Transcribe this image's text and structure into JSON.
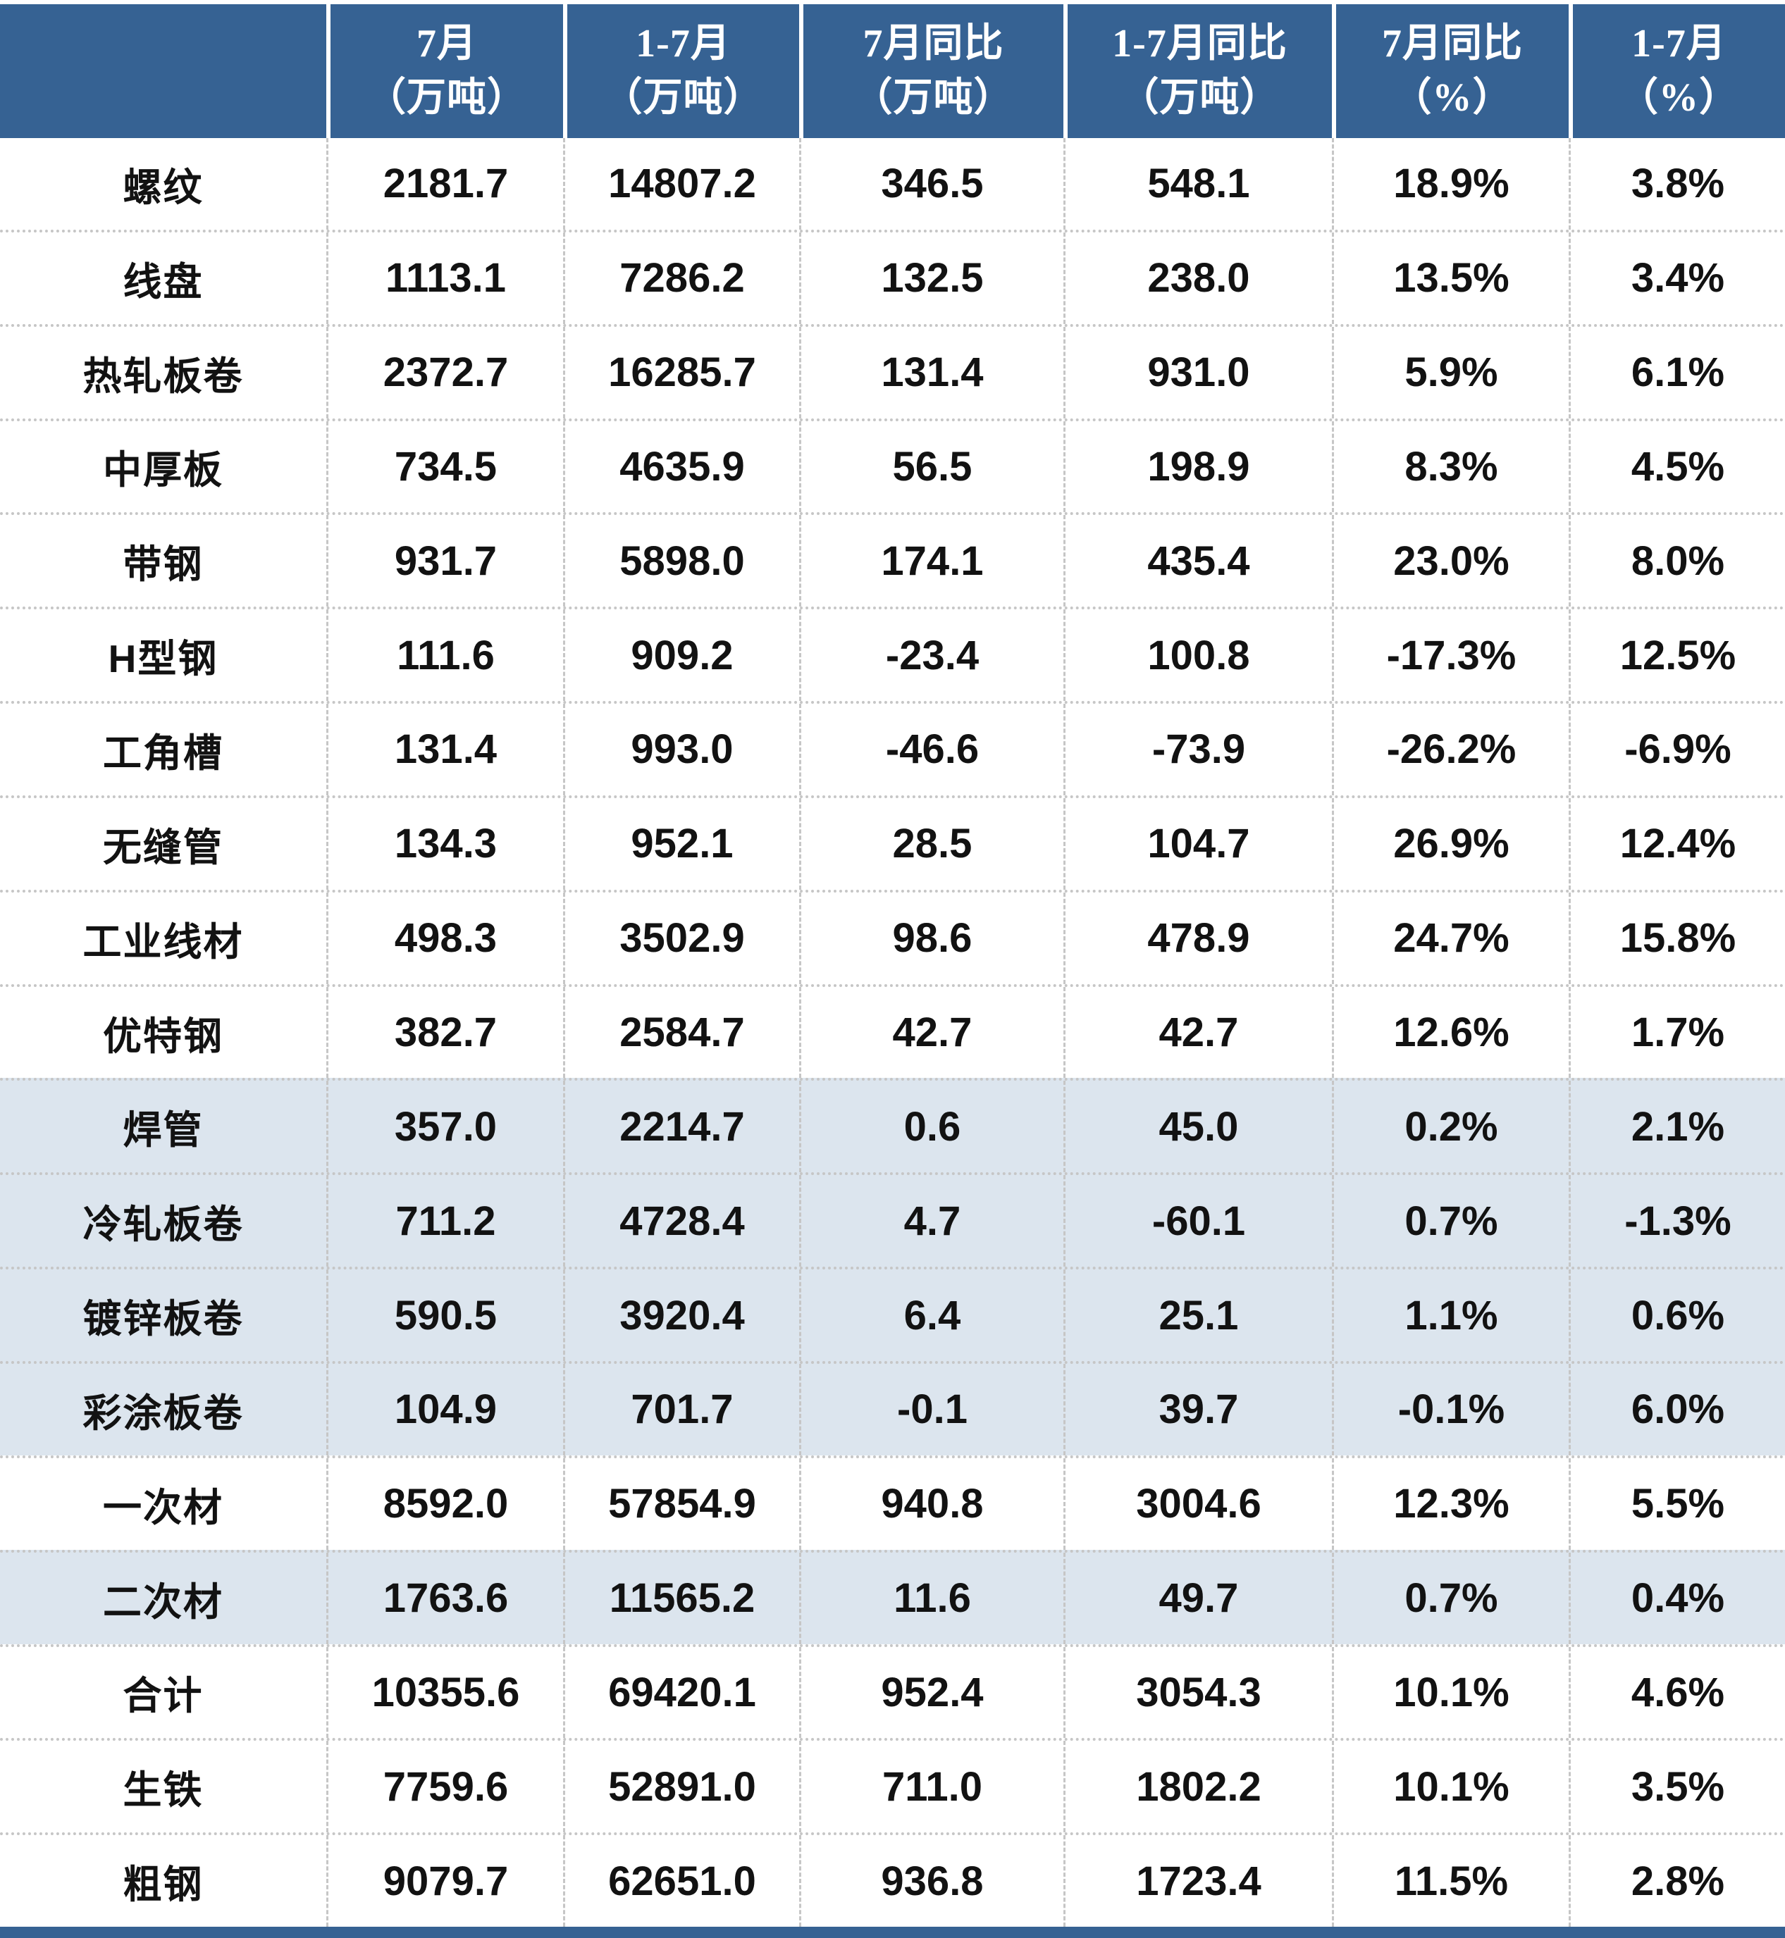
{
  "chart_data": {
    "type": "table",
    "title": "",
    "header": [
      [
        "",
        ""
      ],
      [
        "7月",
        "（万吨）"
      ],
      [
        "1-7月",
        "（万吨）"
      ],
      [
        "7月同比",
        "（万吨）"
      ],
      [
        "1-7月同比",
        "（万吨）"
      ],
      [
        "7月同比",
        "（%）"
      ],
      [
        "1-7月",
        "（%）"
      ]
    ],
    "rows": [
      {
        "label": "螺纹",
        "values": [
          "2181.7",
          "14807.2",
          "346.5",
          "548.1",
          "18.9%",
          "3.8%"
        ],
        "shaded": false
      },
      {
        "label": "线盘",
        "values": [
          "1113.1",
          "7286.2",
          "132.5",
          "238.0",
          "13.5%",
          "3.4%"
        ],
        "shaded": false
      },
      {
        "label": "热轧板卷",
        "values": [
          "2372.7",
          "16285.7",
          "131.4",
          "931.0",
          "5.9%",
          "6.1%"
        ],
        "shaded": false
      },
      {
        "label": "中厚板",
        "values": [
          "734.5",
          "4635.9",
          "56.5",
          "198.9",
          "8.3%",
          "4.5%"
        ],
        "shaded": false
      },
      {
        "label": "带钢",
        "values": [
          "931.7",
          "5898.0",
          "174.1",
          "435.4",
          "23.0%",
          "8.0%"
        ],
        "shaded": false
      },
      {
        "label": "H型钢",
        "values": [
          "111.6",
          "909.2",
          "-23.4",
          "100.8",
          "-17.3%",
          "12.5%"
        ],
        "shaded": false
      },
      {
        "label": "工角槽",
        "values": [
          "131.4",
          "993.0",
          "-46.6",
          "-73.9",
          "-26.2%",
          "-6.9%"
        ],
        "shaded": false
      },
      {
        "label": "无缝管",
        "values": [
          "134.3",
          "952.1",
          "28.5",
          "104.7",
          "26.9%",
          "12.4%"
        ],
        "shaded": false
      },
      {
        "label": "工业线材",
        "values": [
          "498.3",
          "3502.9",
          "98.6",
          "478.9",
          "24.7%",
          "15.8%"
        ],
        "shaded": false
      },
      {
        "label": "优特钢",
        "values": [
          "382.7",
          "2584.7",
          "42.7",
          "42.7",
          "12.6%",
          "1.7%"
        ],
        "shaded": false
      },
      {
        "label": "焊管",
        "values": [
          "357.0",
          "2214.7",
          "0.6",
          "45.0",
          "0.2%",
          "2.1%"
        ],
        "shaded": true
      },
      {
        "label": "冷轧板卷",
        "values": [
          "711.2",
          "4728.4",
          "4.7",
          "-60.1",
          "0.7%",
          "-1.3%"
        ],
        "shaded": true
      },
      {
        "label": "镀锌板卷",
        "values": [
          "590.5",
          "3920.4",
          "6.4",
          "25.1",
          "1.1%",
          "0.6%"
        ],
        "shaded": true
      },
      {
        "label": "彩涂板卷",
        "values": [
          "104.9",
          "701.7",
          "-0.1",
          "39.7",
          "-0.1%",
          "6.0%"
        ],
        "shaded": true
      },
      {
        "label": "一次材",
        "values": [
          "8592.0",
          "57854.9",
          "940.8",
          "3004.6",
          "12.3%",
          "5.5%"
        ],
        "shaded": false
      },
      {
        "label": "二次材",
        "values": [
          "1763.6",
          "11565.2",
          "11.6",
          "49.7",
          "0.7%",
          "0.4%"
        ],
        "shaded": true
      },
      {
        "label": "合计",
        "values": [
          "10355.6",
          "69420.1",
          "952.4",
          "3054.3",
          "10.1%",
          "4.6%"
        ],
        "shaded": false
      },
      {
        "label": "生铁",
        "values": [
          "7759.6",
          "52891.0",
          "711.0",
          "1802.2",
          "10.1%",
          "3.5%"
        ],
        "shaded": false
      },
      {
        "label": "粗钢",
        "values": [
          "9079.7",
          "62651.0",
          "936.8",
          "1723.4",
          "11.5%",
          "2.8%"
        ],
        "shaded": false
      }
    ],
    "layout_hints": {
      "grid": "dashed vertical column separators, dotted horizontal row separators",
      "legend": "none"
    }
  },
  "colors": {
    "header_bg": "#366293",
    "header_text": "#ffffff",
    "shaded_row_bg": "#dce5ee",
    "body_text": "#121212",
    "grid_line": "#c6c6c6",
    "footer_bar": "#366293"
  }
}
